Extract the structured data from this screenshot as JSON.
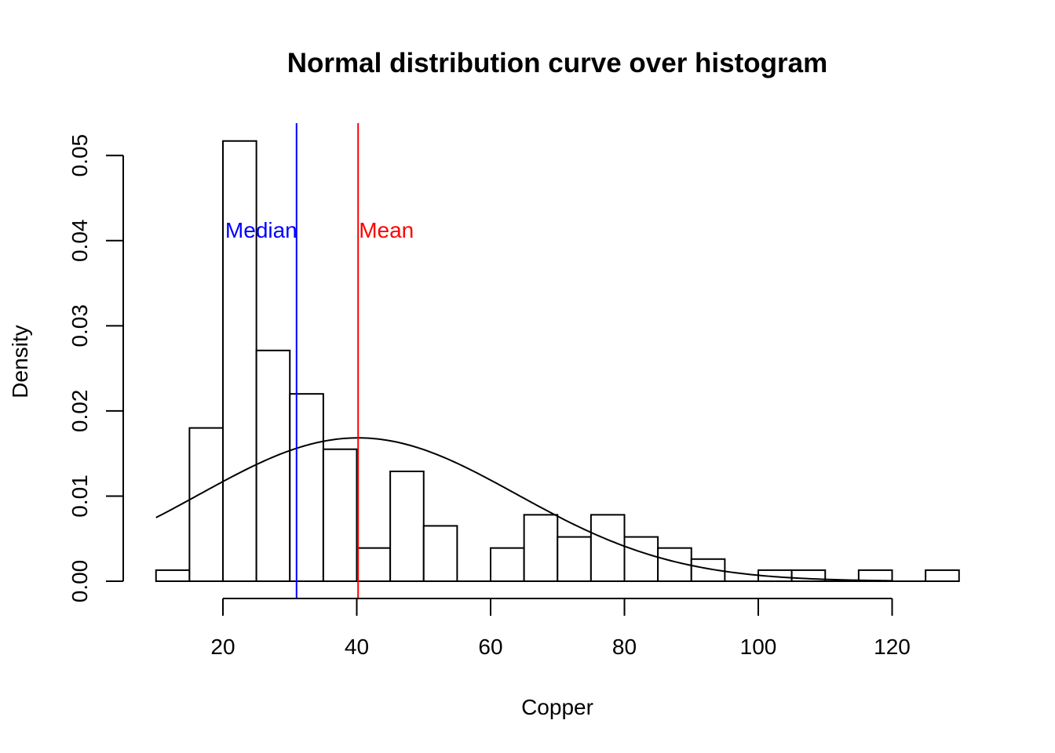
{
  "chart_data": {
    "type": "histogram",
    "title": "Normal distribution curve over histogram",
    "xlabel": "Copper",
    "ylabel": "Density",
    "xlim": [
      10,
      130
    ],
    "ylim": [
      0,
      0.05
    ],
    "x_ticks": [
      20,
      40,
      60,
      80,
      100,
      120
    ],
    "y_ticks": [
      "0.00",
      "0.01",
      "0.02",
      "0.03",
      "0.04",
      "0.05"
    ],
    "bin_width": 5,
    "bins": [
      {
        "start": 10,
        "end": 15,
        "density": 0.0013
      },
      {
        "start": 15,
        "end": 20,
        "density": 0.018
      },
      {
        "start": 20,
        "end": 25,
        "density": 0.0517
      },
      {
        "start": 25,
        "end": 30,
        "density": 0.0271
      },
      {
        "start": 30,
        "end": 35,
        "density": 0.022
      },
      {
        "start": 35,
        "end": 40,
        "density": 0.0155
      },
      {
        "start": 40,
        "end": 45,
        "density": 0.0039
      },
      {
        "start": 45,
        "end": 50,
        "density": 0.0129
      },
      {
        "start": 50,
        "end": 55,
        "density": 0.0065
      },
      {
        "start": 55,
        "end": 60,
        "density": 0.0
      },
      {
        "start": 60,
        "end": 65,
        "density": 0.0039
      },
      {
        "start": 65,
        "end": 70,
        "density": 0.0078
      },
      {
        "start": 70,
        "end": 75,
        "density": 0.0052
      },
      {
        "start": 75,
        "end": 80,
        "density": 0.0078
      },
      {
        "start": 80,
        "end": 85,
        "density": 0.0052
      },
      {
        "start": 85,
        "end": 90,
        "density": 0.0039
      },
      {
        "start": 90,
        "end": 95,
        "density": 0.0026
      },
      {
        "start": 95,
        "end": 100,
        "density": 0.0
      },
      {
        "start": 100,
        "end": 105,
        "density": 0.0013
      },
      {
        "start": 105,
        "end": 110,
        "density": 0.0013
      },
      {
        "start": 110,
        "end": 115,
        "density": 0.0
      },
      {
        "start": 115,
        "end": 120,
        "density": 0.0013
      },
      {
        "start": 120,
        "end": 125,
        "density": 0.0
      },
      {
        "start": 125,
        "end": 130,
        "density": 0.0013
      }
    ],
    "normal_curve": {
      "mean": 40.2,
      "sd": 23.7,
      "x_range": [
        10,
        120
      ]
    },
    "reference_lines": [
      {
        "label": "Median",
        "x": 31,
        "color": "#0000ff"
      },
      {
        "label": "Mean",
        "x": 40.2,
        "color": "#ff0000"
      }
    ],
    "grid": false
  }
}
